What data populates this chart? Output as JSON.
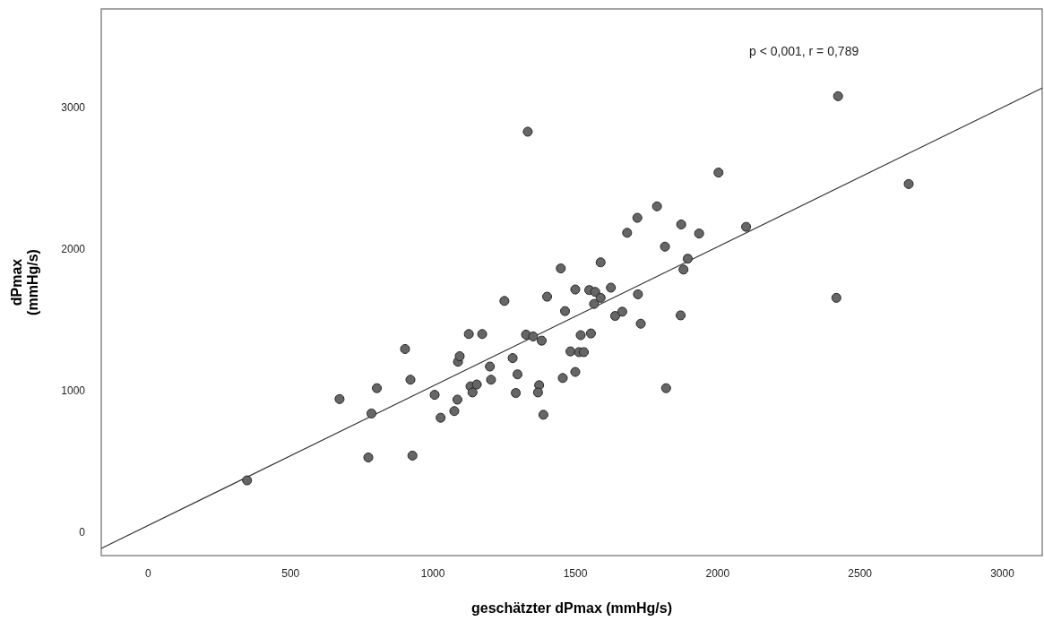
{
  "chart_data": {
    "type": "scatter",
    "xlabel": "geschätzter dPmax (mmHg/s)",
    "ylabel": "dPmax\n(mmHg/s)",
    "annotations": [
      "p < 0,001, r = 0,789"
    ],
    "xlim": [
      -165,
      3140
    ],
    "ylim": [
      -166,
      3700
    ],
    "xticks": [
      0,
      500,
      1000,
      1500,
      2000,
      2500,
      3000
    ],
    "yticks": [
      0,
      1000,
      2000,
      3000
    ],
    "grid": false,
    "marker": "circle",
    "series": [
      {
        "color": "#666666",
        "x": [
          347,
          672,
          773,
          784,
          803,
          902,
          921,
          928,
          1006,
          1027,
          1075,
          1086,
          1088,
          1094,
          1126,
          1132,
          1139,
          1154,
          1173,
          1200,
          1204,
          1251,
          1280,
          1291,
          1297,
          1327,
          1333,
          1352,
          1373,
          1369,
          1382,
          1388,
          1401,
          1449,
          1456,
          1464,
          1483,
          1500,
          1500,
          1513,
          1530,
          1519,
          1549,
          1555,
          1570,
          1566,
          1589,
          1589,
          1625,
          1640,
          1665,
          1682,
          1718,
          1720,
          1730,
          1787,
          1815,
          1819,
          1870,
          1872,
          1880,
          1895,
          1935,
          2003,
          2100,
          2417,
          2423,
          2671
        ],
        "values": [
          366,
          941,
          528,
          839,
          1018,
          1295,
          1078,
          541,
          971,
          809,
          856,
          937,
          1205,
          1244,
          1401,
          1031,
          988,
          1044,
          1401,
          1171,
          1078,
          1635,
          1231,
          984,
          1116,
          1397,
          2832,
          1384,
          1039,
          988,
          1354,
          830,
          1665,
          1865,
          1090,
          1563,
          1278,
          1716,
          1133,
          1273,
          1273,
          1393,
          1712,
          1405,
          1699,
          1614,
          1657,
          1908,
          1729,
          1529,
          1559,
          2117,
          2223,
          1682,
          1474,
          2304,
          2019,
          1018,
          1533,
          2176,
          1857,
          1934,
          2112,
          2543,
          2159,
          1657,
          3083,
          2462
        ]
      },
      {
        "type": "line",
        "color": "#333333",
        "marker": "none",
        "line_style": "solid",
        "x": [
          -165,
          3140
        ],
        "values": [
          -115,
          3141
        ]
      }
    ]
  }
}
